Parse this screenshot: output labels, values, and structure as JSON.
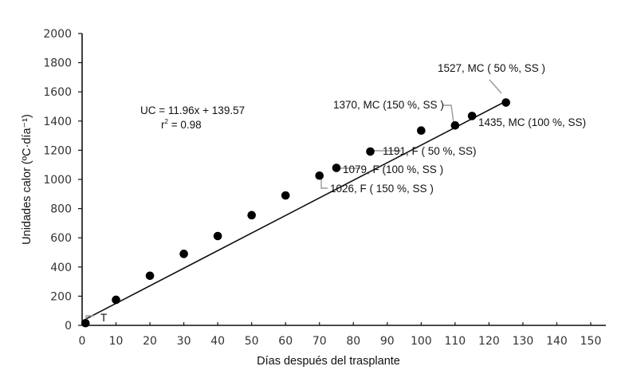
{
  "chart_data": {
    "type": "scatter",
    "xlabel": "Días después del trasplante",
    "ylabel": "Unidades calor (ºC·día⁻¹)",
    "xlim": [
      0,
      150
    ],
    "ylim": [
      0,
      2000
    ],
    "xticks": [
      0,
      10,
      20,
      30,
      40,
      50,
      60,
      70,
      80,
      90,
      100,
      110,
      120,
      130,
      140,
      150
    ],
    "yticks": [
      0,
      200,
      400,
      600,
      800,
      1000,
      1200,
      1400,
      1600,
      1800,
      2000
    ],
    "grid": false,
    "marker_color": "#000000",
    "points": [
      {
        "x": 1,
        "y": 15,
        "label": "T"
      },
      {
        "x": 10,
        "y": 175
      },
      {
        "x": 20,
        "y": 340
      },
      {
        "x": 30,
        "y": 490
      },
      {
        "x": 40,
        "y": 612
      },
      {
        "x": 50,
        "y": 755
      },
      {
        "x": 60,
        "y": 890
      },
      {
        "x": 70,
        "y": 1026,
        "label": "1026, F ( 150 %, SS )"
      },
      {
        "x": 75,
        "y": 1079,
        "label": "1079, F (100 %, SS )"
      },
      {
        "x": 85,
        "y": 1191,
        "label": "1191, F ( 50 %, SS)"
      },
      {
        "x": 100,
        "y": 1335
      },
      {
        "x": 110,
        "y": 1370,
        "label": "1370, MC (150 %, SS )"
      },
      {
        "x": 115,
        "y": 1435,
        "label": "1435, MC (100 %, SS)"
      },
      {
        "x": 125,
        "y": 1527,
        "label": "1527, MC ( 50 %, SS )"
      }
    ],
    "trendline": {
      "type": "linear",
      "slope": 11.96,
      "intercept": 139.57,
      "x_range": [
        1,
        125
      ],
      "equation": "UC = 11.96x + 139.57",
      "r2_label": "r",
      "r2_sup": "2",
      "r2_value": " = 0.98"
    }
  }
}
